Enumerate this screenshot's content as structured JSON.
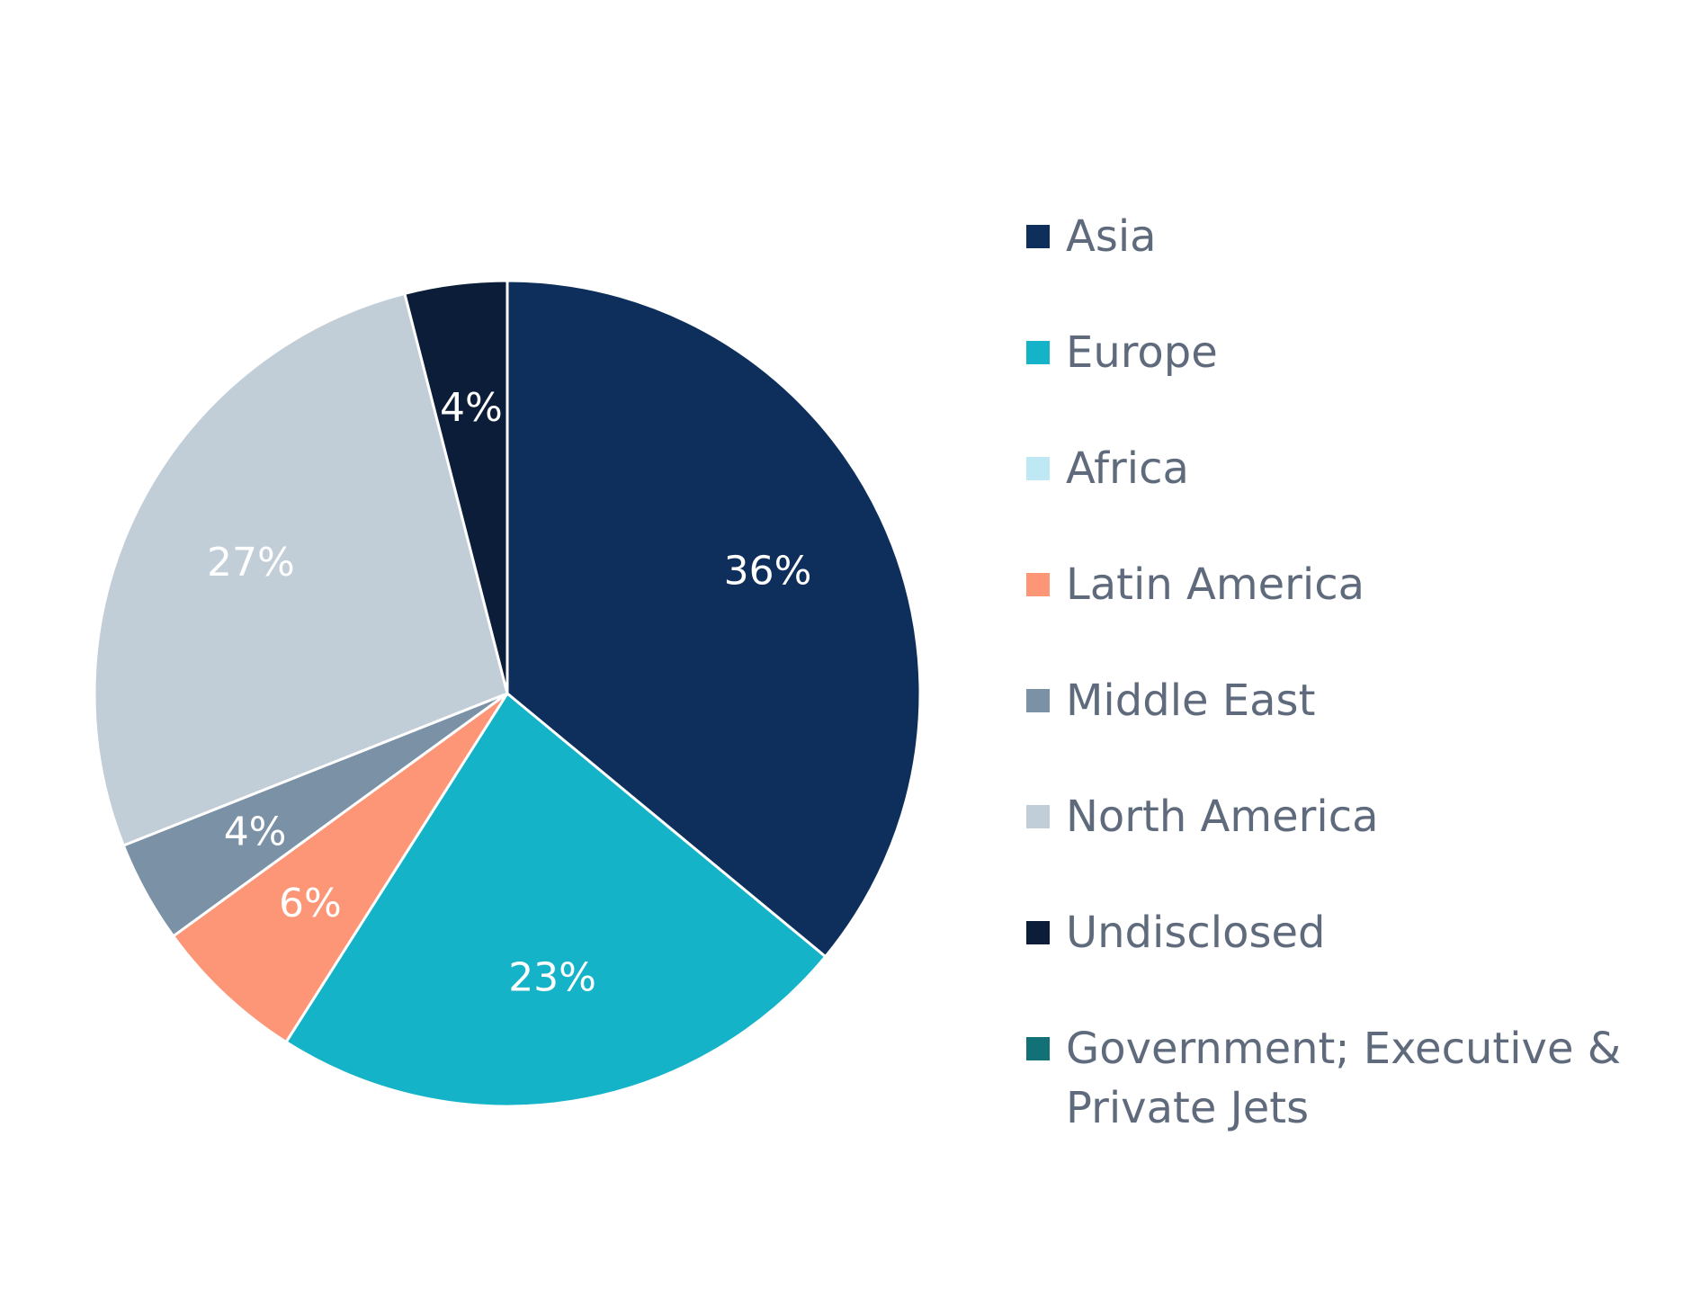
{
  "chart_data": {
    "type": "pie",
    "start_angle_deg": 0,
    "direction": "clockwise",
    "legend_position": "right",
    "slices": [
      {
        "label": "Asia",
        "value": 36,
        "display": "36%",
        "color": "#0e2f5c"
      },
      {
        "label": "Europe",
        "value": 23,
        "display": "23%",
        "color": "#14b3c8"
      },
      {
        "label": "Africa",
        "value": 0,
        "display": "",
        "color": "#bfe8f5"
      },
      {
        "label": "Latin America",
        "value": 6,
        "display": "6%",
        "color": "#fc9677"
      },
      {
        "label": "Middle East",
        "value": 4,
        "display": "4%",
        "color": "#7b91a6"
      },
      {
        "label": "North America",
        "value": 27,
        "display": "27%",
        "color": "#c1cdd7"
      },
      {
        "label": "Undisclosed",
        "value": 4,
        "display": "4%",
        "color": "#0b1d38"
      },
      {
        "label": "Government; Executive & Private Jets",
        "value": 0,
        "display": "",
        "color": "#127077"
      }
    ]
  }
}
